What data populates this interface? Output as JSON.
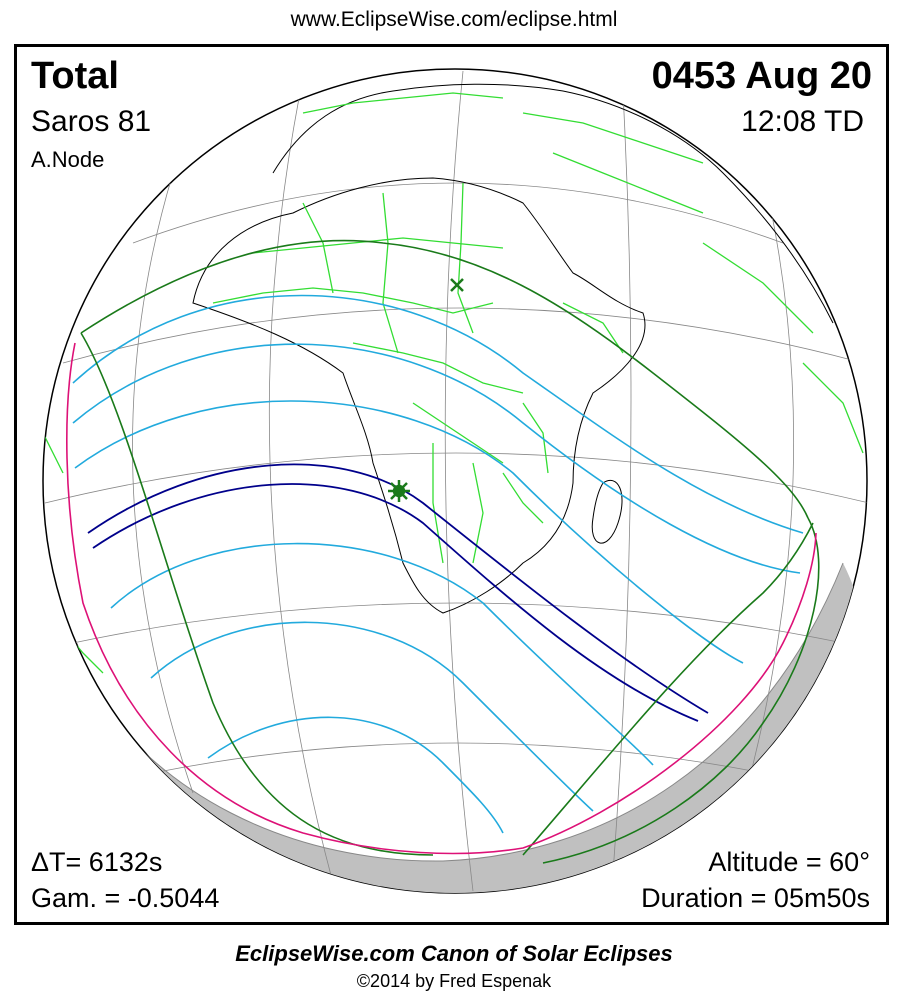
{
  "header": {
    "url": "www.EclipseWise.com/eclipse.html"
  },
  "eclipse": {
    "type": "Total",
    "date": "0453 Aug 20",
    "saros": "Saros  81",
    "time": "12:08 TD",
    "node": "A.Node",
    "delta_t": "ΔT=   6132s",
    "gamma": "Gam. = -0.5044",
    "altitude": "Altitude = 60°",
    "duration": "Duration = 05m50s"
  },
  "footer": {
    "title": "EclipseWise.com Canon of Solar Eclipses",
    "copyright": "©2014 by Fred Espenak"
  },
  "colors": {
    "borders": "#33dd33",
    "coast": "#000000",
    "penumbral_limit": "#1a7a1a",
    "partial_lines": "#22aadd",
    "central_path": "#00008b",
    "rise_set": "#dd1177",
    "night_shade": "#c0c0c0"
  },
  "markers": {
    "greatest_eclipse": "star-marker",
    "sub_solar": "x-marker"
  }
}
